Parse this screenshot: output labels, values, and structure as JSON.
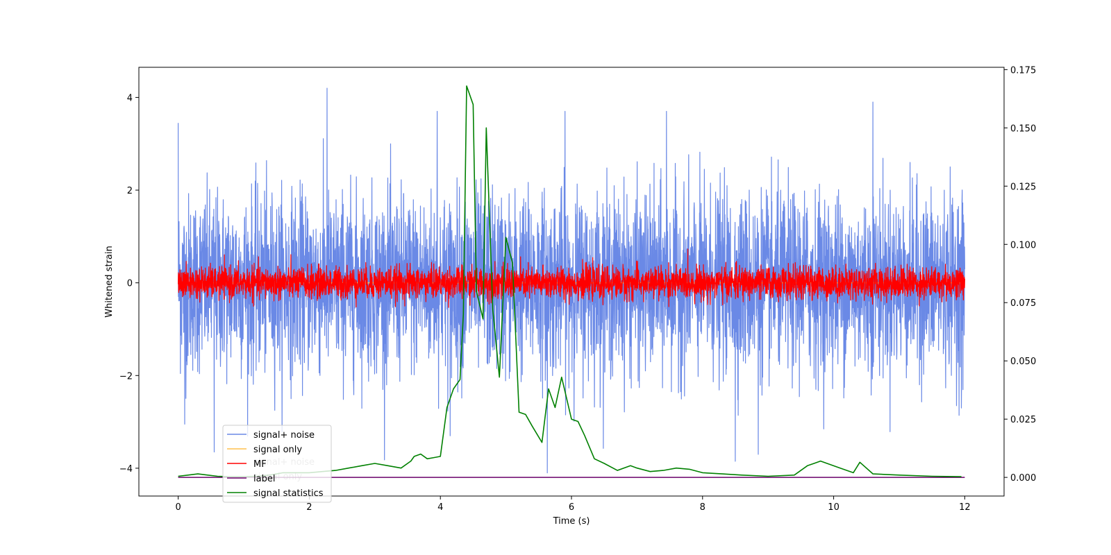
{
  "chart_data": {
    "type": "line",
    "xlabel": "Time (s)",
    "ylabel": "Whitened strain",
    "xlim": [
      -0.6,
      12.6
    ],
    "ylim": [
      -4.6,
      4.65
    ],
    "y2lim": [
      -0.008,
      0.176
    ],
    "x_ticks": [
      0,
      2,
      4,
      6,
      8,
      10,
      12
    ],
    "y_ticks": [
      -4,
      -2,
      0,
      2,
      4
    ],
    "y2_ticks": [
      0.0,
      0.025,
      0.05,
      0.075,
      0.1,
      0.125,
      0.15,
      0.175
    ],
    "y_tick_labels": [
      "−4",
      "−2",
      "0",
      "2",
      "4"
    ],
    "y2_tick_labels": [
      "0.000",
      "0.025",
      "0.050",
      "0.075",
      "0.100",
      "0.125",
      "0.150",
      "0.175"
    ],
    "x_tick_labels": [
      "0",
      "2",
      "4",
      "6",
      "8",
      "10",
      "12"
    ],
    "legend_placement": "lower-left",
    "legend_ghost": [
      "signal+ noise",
      "signal only"
    ],
    "series": [
      {
        "name": "signal+ noise",
        "color": "#6a89e6",
        "axis": "left",
        "kind": "noise",
        "sigma": 0.95,
        "x_range": [
          0,
          12
        ],
        "spikes": [
          [
            0.0,
            3.45
          ],
          [
            0.1,
            -3.05
          ],
          [
            0.55,
            -3.65
          ],
          [
            2.27,
            4.2
          ],
          [
            3.95,
            3.7
          ],
          [
            4.15,
            -3.3
          ],
          [
            5.63,
            -4.1
          ],
          [
            5.9,
            3.7
          ],
          [
            7.45,
            3.7
          ],
          [
            8.5,
            -3.85
          ],
          [
            8.85,
            -3.7
          ],
          [
            10.6,
            3.9
          ],
          [
            11.95,
            -2.7
          ]
        ]
      },
      {
        "name": "signal only",
        "color": "#ffc04d",
        "axis": "left",
        "kind": "flat",
        "value": 0.0,
        "x_range": [
          0,
          12
        ]
      },
      {
        "name": "MF",
        "color": "#ff0000",
        "axis": "left",
        "kind": "noise",
        "sigma": 0.17,
        "x_range": [
          0,
          12
        ]
      },
      {
        "name": "label",
        "color": "#6a006a",
        "axis": "right",
        "kind": "flat",
        "value": 0.0,
        "x_range": [
          0,
          12
        ]
      },
      {
        "name": "signal statistics",
        "color": "#008000",
        "axis": "right",
        "kind": "curve",
        "x": [
          0.0,
          0.15,
          0.3,
          0.45,
          0.6,
          0.8,
          1.0,
          1.2,
          1.4,
          1.6,
          1.8,
          2.0,
          2.2,
          2.4,
          2.6,
          2.8,
          3.0,
          3.2,
          3.4,
          3.55,
          3.6,
          3.7,
          3.8,
          3.9,
          4.0,
          4.1,
          4.2,
          4.3,
          4.35,
          4.4,
          4.5,
          4.55,
          4.65,
          4.7,
          4.8,
          4.9,
          5.0,
          5.1,
          5.15,
          5.2,
          5.3,
          5.4,
          5.55,
          5.65,
          5.75,
          5.85,
          5.9,
          6.0,
          6.1,
          6.2,
          6.35,
          6.5,
          6.7,
          6.9,
          7.0,
          7.2,
          7.4,
          7.6,
          7.8,
          8.0,
          8.3,
          8.6,
          9.0,
          9.4,
          9.6,
          9.7,
          9.8,
          9.9,
          10.1,
          10.3,
          10.4,
          10.6,
          11.0,
          11.5,
          11.95
        ],
        "y": [
          0.0005,
          0.001,
          0.0015,
          0.001,
          0.0005,
          0.0003,
          0.0003,
          0.0005,
          0.001,
          0.002,
          0.002,
          0.002,
          0.0025,
          0.003,
          0.004,
          0.005,
          0.006,
          0.005,
          0.004,
          0.007,
          0.009,
          0.01,
          0.008,
          0.0085,
          0.009,
          0.03,
          0.038,
          0.042,
          0.07,
          0.168,
          0.16,
          0.08,
          0.068,
          0.15,
          0.072,
          0.043,
          0.103,
          0.092,
          0.06,
          0.028,
          0.027,
          0.022,
          0.015,
          0.038,
          0.03,
          0.043,
          0.037,
          0.025,
          0.024,
          0.018,
          0.008,
          0.006,
          0.003,
          0.005,
          0.004,
          0.0025,
          0.003,
          0.004,
          0.0035,
          0.002,
          0.0015,
          0.001,
          0.0005,
          0.001,
          0.005,
          0.006,
          0.007,
          0.006,
          0.004,
          0.002,
          0.0065,
          0.0015,
          0.001,
          0.0005,
          0.0003
        ]
      }
    ]
  }
}
